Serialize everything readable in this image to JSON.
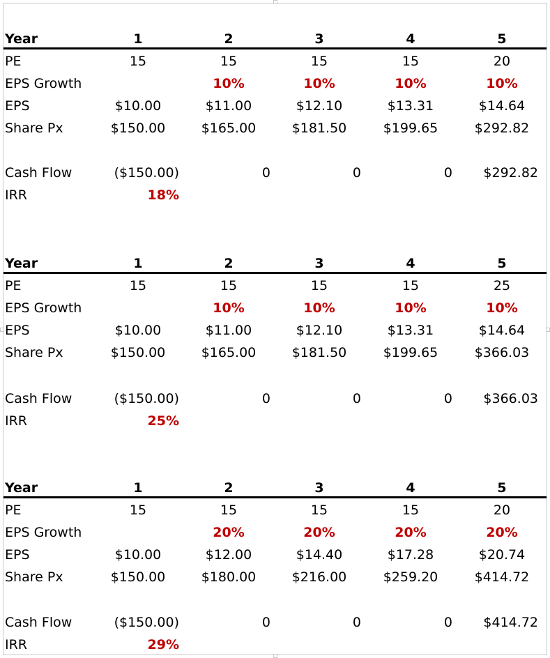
{
  "tables": [
    {
      "year": [
        "1",
        "2",
        "3",
        "4",
        "5"
      ],
      "pe": [
        "15",
        "15",
        "15",
        "15",
        "20"
      ],
      "eps_growth": [
        "",
        "10%",
        "10%",
        "10%",
        "10%"
      ],
      "eps": [
        "$10.00",
        "$11.00",
        "$12.10",
        "$13.31",
        "$14.64"
      ],
      "share_px": [
        "$150.00",
        "$165.00",
        "$181.50",
        "$199.65",
        "$292.82"
      ],
      "cash_flow": [
        "($150.00)",
        "0",
        "0",
        "0",
        "$292.82"
      ],
      "irr": "18%"
    },
    {
      "year": [
        "1",
        "2",
        "3",
        "4",
        "5"
      ],
      "pe": [
        "15",
        "15",
        "15",
        "15",
        "25"
      ],
      "eps_growth": [
        "",
        "10%",
        "10%",
        "10%",
        "10%"
      ],
      "eps": [
        "$10.00",
        "$11.00",
        "$12.10",
        "$13.31",
        "$14.64"
      ],
      "share_px": [
        "$150.00",
        "$165.00",
        "$181.50",
        "$199.65",
        "$366.03"
      ],
      "cash_flow": [
        "($150.00)",
        "0",
        "0",
        "0",
        "$366.03"
      ],
      "irr": "25%"
    },
    {
      "year": [
        "1",
        "2",
        "3",
        "4",
        "5"
      ],
      "pe": [
        "15",
        "15",
        "15",
        "15",
        "20"
      ],
      "eps_growth": [
        "",
        "20%",
        "20%",
        "20%",
        "20%"
      ],
      "eps": [
        "$10.00",
        "$12.00",
        "$14.40",
        "$17.28",
        "$20.74"
      ],
      "share_px": [
        "$150.00",
        "$180.00",
        "$216.00",
        "$259.20",
        "$414.72"
      ],
      "cash_flow": [
        "($150.00)",
        "0",
        "0",
        "0",
        "$414.72"
      ],
      "irr": "29%"
    }
  ],
  "labels": {
    "year": "Year",
    "pe": "PE",
    "eps_growth": "EPS Growth",
    "eps": "EPS",
    "share_px": "Share Px",
    "cash_flow": "Cash Flow",
    "irr": "IRR"
  },
  "colors": {
    "highlight": "#c00000",
    "rule": "#000000",
    "border": "#c8c8c8"
  }
}
